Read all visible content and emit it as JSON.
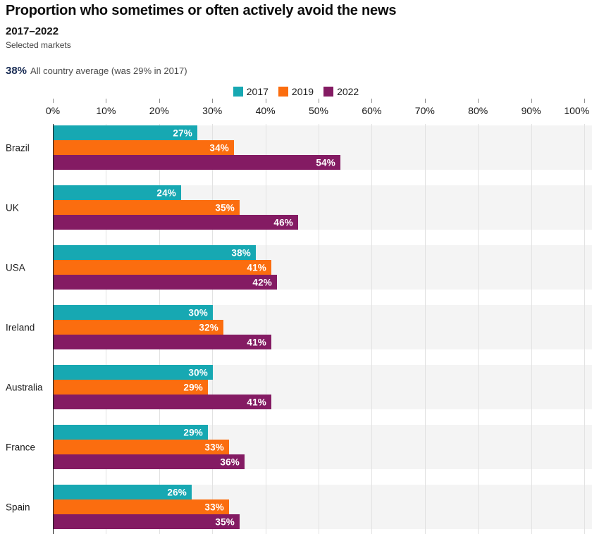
{
  "header": {
    "title": "Proportion who sometimes or often actively avoid the news",
    "subtitle": "2017–2022",
    "description": "Selected markets",
    "stat_value": "38%",
    "stat_text": "All country average (was 29% in 2017)"
  },
  "chart_data": {
    "type": "bar",
    "orientation": "horizontal",
    "title": "Proportion who sometimes or often actively avoid the news",
    "subtitle": "2017–2022",
    "categories": [
      "Brazil",
      "UK",
      "USA",
      "Ireland",
      "Australia",
      "France",
      "Spain"
    ],
    "series": [
      {
        "name": "2017",
        "color": "#17a8b2",
        "values": [
          27,
          24,
          38,
          30,
          30,
          29,
          26
        ]
      },
      {
        "name": "2019",
        "color": "#fb6d0f",
        "values": [
          34,
          35,
          41,
          32,
          29,
          33,
          33
        ]
      },
      {
        "name": "2022",
        "color": "#841b63",
        "values": [
          54,
          46,
          42,
          41,
          41,
          36,
          35
        ]
      }
    ],
    "x_ticks": [
      "0%",
      "10%",
      "20%",
      "30%",
      "40%",
      "50%",
      "60%",
      "70%",
      "80%",
      "90%",
      "100%"
    ],
    "xlim": [
      0,
      100
    ],
    "value_suffix": "%",
    "grid": true,
    "legend_position": "top",
    "band_color": "#f4f4f4"
  }
}
